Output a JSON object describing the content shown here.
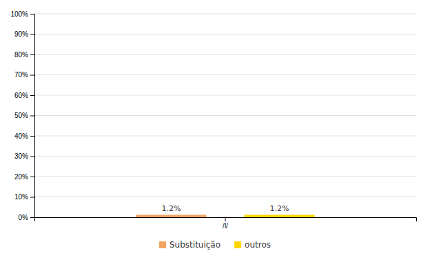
{
  "chart_data": {
    "type": "bar",
    "categories": [
      "/l/"
    ],
    "series": [
      {
        "name": "Substituição",
        "color": "#F4A460",
        "values": [
          1.2
        ],
        "value_labels": [
          "1.2%"
        ]
      },
      {
        "name": "outros",
        "color": "#FFD700",
        "values": [
          1.2
        ],
        "value_labels": [
          "1.2%"
        ]
      }
    ],
    "ylim": [
      0,
      100
    ],
    "yticks": [
      {
        "value": 0,
        "label": "0%"
      },
      {
        "value": 10,
        "label": "10%"
      },
      {
        "value": 20,
        "label": "20%"
      },
      {
        "value": 30,
        "label": "30%"
      },
      {
        "value": 40,
        "label": "40%"
      },
      {
        "value": 50,
        "label": "50%"
      },
      {
        "value": 60,
        "label": "60%"
      },
      {
        "value": 70,
        "label": "70%"
      },
      {
        "value": 80,
        "label": "80%"
      },
      {
        "value": 90,
        "label": "90%"
      },
      {
        "value": 100,
        "label": "100%"
      }
    ],
    "grid": true,
    "legend": "bottom",
    "data_labels": true
  }
}
